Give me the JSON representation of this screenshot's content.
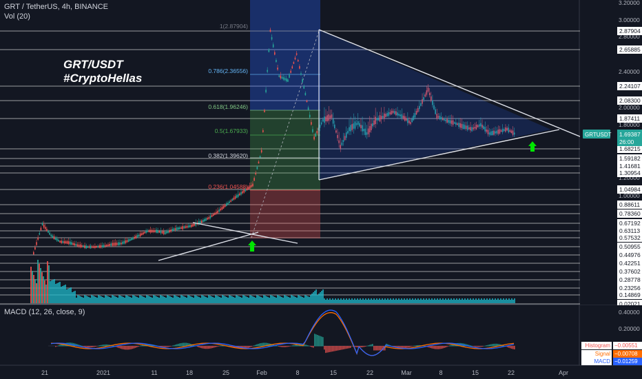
{
  "header": {
    "symbol_line": "GRT / TetherUS, 4h, BINANCE",
    "volume_label": "Vol (20)"
  },
  "annotation": {
    "line1": "GRT/USDT",
    "line2": "#CryptoHellas"
  },
  "price_axis": {
    "ticks": [
      "3.20000",
      "3.00000",
      "2.80000",
      "2.40000",
      "2.00000",
      "1.80000",
      "1.20000",
      "1.00000",
      "0.40000",
      "0.20000"
    ],
    "levels": [
      "2.87904",
      "2.65885",
      "2.24107",
      "2.08300",
      "1.87411",
      "1.68215",
      "1.59182",
      "1.41681",
      "1.30954",
      "1.04984",
      "0.88611",
      "0.78360",
      "0.67192",
      "0.63113",
      "0.57532",
      "0.50955",
      "0.44976",
      "0.42251",
      "0.37602",
      "0.28778",
      "0.23256",
      "0.14869",
      "0.02021"
    ],
    "current": {
      "symbol": "GRTUSDT",
      "price": "1.69387",
      "countdown": "26:00",
      "color": "#26a69a"
    }
  },
  "fib_levels": [
    {
      "label": "1(2.87904)",
      "color": "#787b86"
    },
    {
      "label": "0.786(2.36556)",
      "color": "#64b5f6"
    },
    {
      "label": "0.618(1.96246)",
      "color": "#81c784"
    },
    {
      "label": "0.5(1.67933)",
      "color": "#4caf50"
    },
    {
      "label": "0.382(1.39620)",
      "color": "#d1d4dc"
    },
    {
      "label": "0.236(1.04588)",
      "color": "#ef5350"
    }
  ],
  "macd": {
    "label": "MACD (12, 26, close, 9)",
    "axis_ticks": [
      "0.40000",
      "0.20000"
    ],
    "legend": [
      {
        "name": "Histogram",
        "value": "−0.00551",
        "color": "#ef5350",
        "bg": "#ffffff"
      },
      {
        "name": "Signal",
        "value": "−0.00708",
        "color": "#ffffff",
        "bg": "#ff6d00"
      },
      {
        "name": "MACD",
        "value": "−0.01259",
        "color": "#ffffff",
        "bg": "#2962ff"
      }
    ]
  },
  "time_axis": {
    "labels": [
      "21",
      "2021",
      "11",
      "18",
      "25",
      "Feb",
      "8",
      "15",
      "22",
      "Mar",
      "8",
      "15",
      "22",
      "Apr"
    ]
  },
  "chart_data": {
    "type": "line",
    "ylim": [
      0,
      3.2
    ],
    "series": [
      {
        "values": [
          0.35,
          0.68,
          0.55,
          0.48,
          0.47,
          0.44,
          0.42,
          0.42,
          0.43,
          0.45,
          0.46,
          0.5,
          0.55,
          0.6,
          0.6,
          0.58,
          0.62,
          0.64,
          0.66,
          0.7,
          0.75,
          0.82,
          0.9,
          0.98,
          1.05,
          1.12,
          1.5,
          2.87,
          2.35,
          2.3,
          2.6,
          2.15,
          1.65,
          1.85,
          1.9,
          1.55,
          1.75,
          1.82,
          1.7,
          1.85,
          1.9,
          1.95,
          1.9,
          1.82,
          2.0,
          2.2,
          1.9,
          1.85,
          1.82,
          1.78,
          1.75,
          1.8,
          1.7,
          1.72,
          1.75,
          1.69
        ]
      }
    ]
  }
}
